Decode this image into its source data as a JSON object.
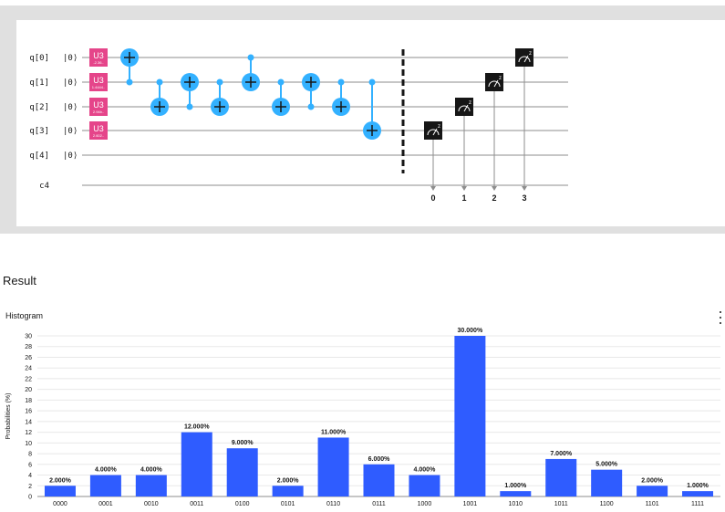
{
  "circuit": {
    "qubits": [
      "q[0]",
      "q[1]",
      "q[2]",
      "q[3]",
      "q[4]"
    ],
    "init_state": "|0⟩",
    "classical_register": "c4",
    "u3_gates": [
      {
        "label": "U3",
        "param": "-2.36.."
      },
      {
        "label": "U3",
        "param": "1.4444.."
      },
      {
        "label": "U3",
        "param": "2.94b.."
      },
      {
        "label": "U3",
        "param": "2.602.."
      }
    ],
    "cnots": [
      {
        "control": 1,
        "target": 0
      },
      {
        "control": 1,
        "target": 2
      },
      {
        "control": 2,
        "target": 1
      },
      {
        "control": 1,
        "target": 2
      },
      {
        "control": 0,
        "target": 1
      },
      {
        "control": 1,
        "target": 2
      },
      {
        "control": 2,
        "target": 1
      },
      {
        "control": 1,
        "target": 2
      },
      {
        "control": 1,
        "target": 3
      }
    ],
    "measurements": [
      {
        "qubit": 3,
        "bit": "0"
      },
      {
        "qubit": 2,
        "bit": "1"
      },
      {
        "qubit": 1,
        "bit": "2"
      },
      {
        "qubit": 0,
        "bit": "3"
      }
    ],
    "measure_label": "z",
    "colors": {
      "u3": "#e5458a",
      "cnot": "#33b1ff",
      "measure": "#161616",
      "wire": "#8d8d8d"
    }
  },
  "result": {
    "title": "Result"
  },
  "histogram": {
    "title": "Histogram",
    "menu_icon": "overflow-menu-icon"
  },
  "chart_data": {
    "type": "bar",
    "title": "Histogram",
    "xlabel": "",
    "ylabel": "Probabilities (%)",
    "ylim": [
      0,
      30
    ],
    "yticks": [
      0,
      2,
      4,
      6,
      8,
      10,
      12,
      14,
      16,
      18,
      20,
      22,
      24,
      26,
      28,
      30
    ],
    "grid": true,
    "bar_color": "#2f5cff",
    "categories": [
      "0000",
      "0001",
      "0010",
      "0011",
      "0100",
      "0101",
      "0110",
      "0111",
      "1000",
      "1001",
      "1010",
      "1011",
      "1100",
      "1101",
      "1111"
    ],
    "values": [
      2,
      4,
      4,
      12,
      9,
      2,
      11,
      6,
      4,
      30,
      1,
      7,
      5,
      2,
      1
    ],
    "value_labels": [
      "2.000%",
      "4.000%",
      "4.000%",
      "12.000%",
      "9.000%",
      "2.000%",
      "11.000%",
      "6.000%",
      "4.000%",
      "30.000%",
      "1.000%",
      "7.000%",
      "5.000%",
      "2.000%",
      "1.000%"
    ]
  }
}
